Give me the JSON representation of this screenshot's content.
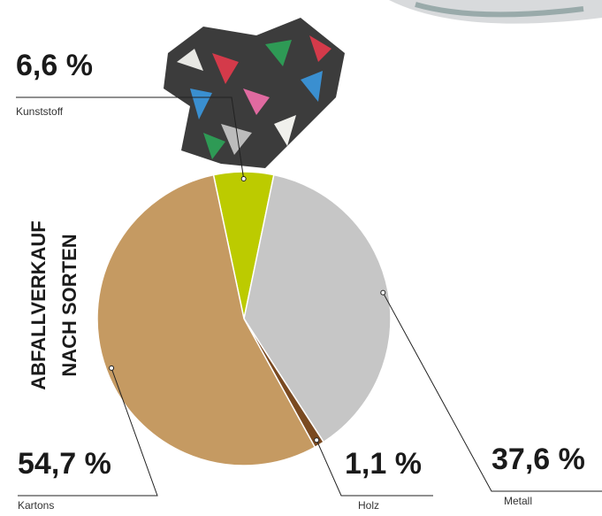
{
  "chart_data": {
    "type": "pie",
    "title": [
      "ABFALLVERKAUF",
      "NACH SORTEN"
    ],
    "categories": [
      "Kunststoff",
      "Metall",
      "Holz",
      "Kartons"
    ],
    "values": [
      6.6,
      37.6,
      1.1,
      54.7
    ],
    "value_labels": [
      "6,6 %",
      "37,6 %",
      "1,1 %",
      "54,7 %"
    ],
    "colors": [
      "#bccb00",
      "#c6c6c6",
      "#7a4a21",
      "#c59a62"
    ]
  }
}
